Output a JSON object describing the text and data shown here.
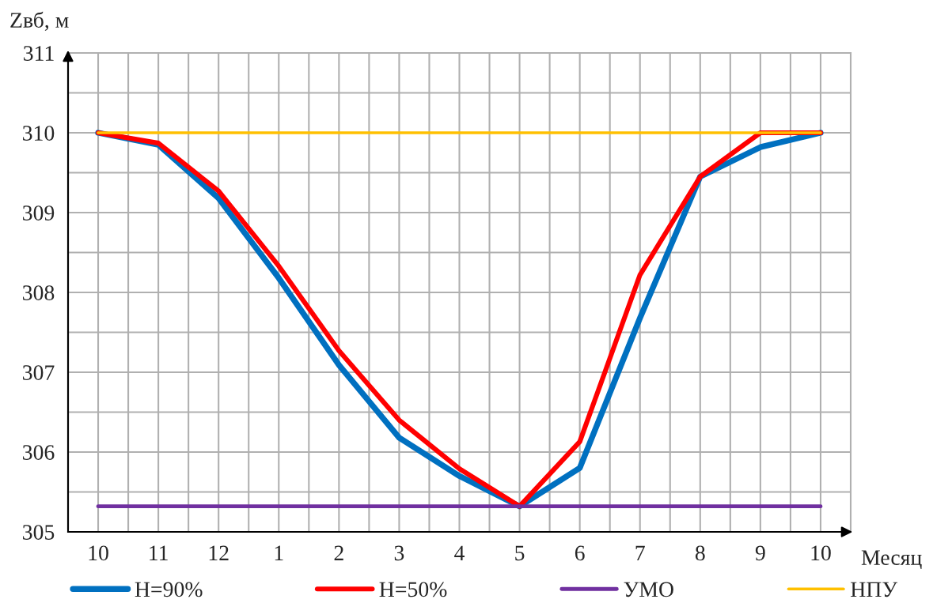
{
  "chart_data": {
    "type": "line",
    "ylabel": "Zвб, м",
    "xlabel": "Месяц",
    "categories": [
      "10",
      "11",
      "12",
      "1",
      "2",
      "3",
      "4",
      "5",
      "6",
      "7",
      "8",
      "9",
      "10"
    ],
    "series": [
      {
        "name": "H=90%",
        "color": "#0070c0",
        "values": [
          310,
          309.85,
          309.18,
          308.18,
          307.09,
          306.18,
          305.7,
          305.32,
          305.8,
          307.68,
          309.45,
          309.82,
          310
        ]
      },
      {
        "name": "H=50%",
        "color": "#ff0000",
        "values": [
          310,
          309.87,
          309.27,
          308.33,
          307.27,
          306.4,
          305.79,
          305.32,
          306.13,
          308.22,
          309.45,
          310,
          310
        ]
      },
      {
        "name": "УМО",
        "color": "#7030a0",
        "values": [
          305.32,
          305.32,
          305.32,
          305.32,
          305.32,
          305.32,
          305.32,
          305.32,
          305.32,
          305.32,
          305.32,
          305.32,
          305.32
        ]
      },
      {
        "name": "НПУ",
        "color": "#ffc000",
        "values": [
          310,
          310,
          310,
          310,
          310,
          310,
          310,
          310,
          310,
          310,
          310,
          310,
          310
        ]
      }
    ],
    "ylim": [
      305,
      311
    ],
    "yticks": [
      305,
      306,
      307,
      308,
      309,
      310,
      311
    ],
    "grid": true,
    "legend": "bottom",
    "marker": "none",
    "line_style": "solid"
  }
}
